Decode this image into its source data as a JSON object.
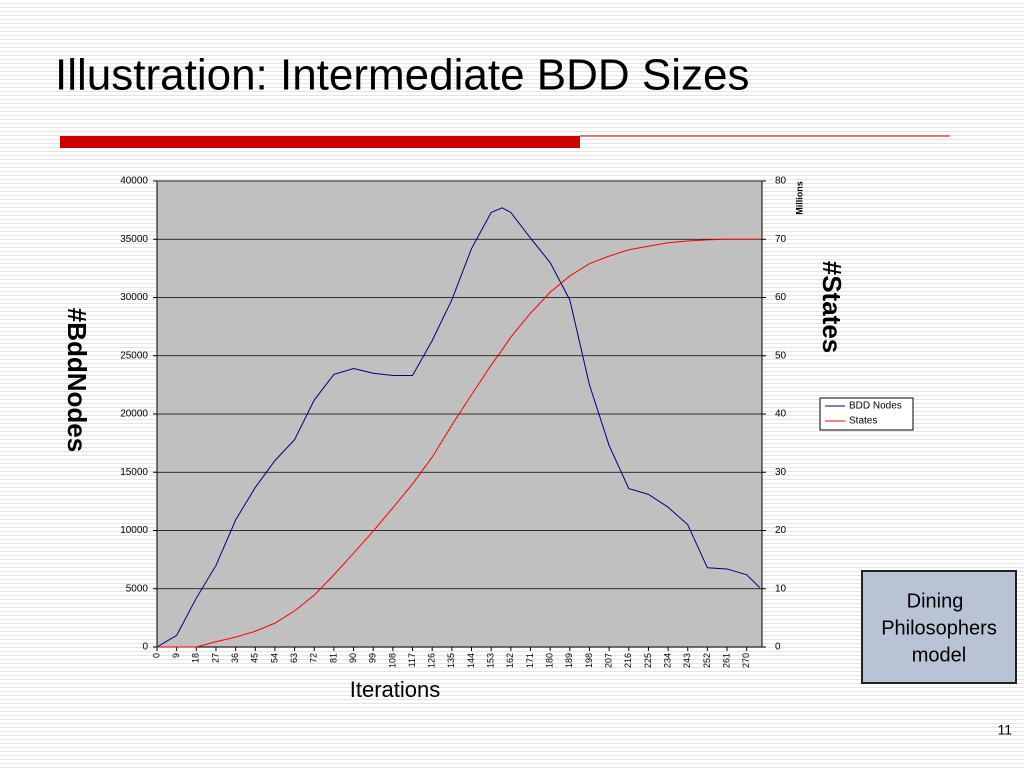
{
  "slide": {
    "title": "Illustration: Intermediate BDD Sizes",
    "note_lines": [
      "Dining",
      "Philosophers",
      "model"
    ],
    "page_number": "11"
  },
  "chart_data": {
    "type": "line",
    "x_label": "Iterations",
    "y_label": "#BddNodes",
    "y2_label": "#States",
    "y2_unit": "Millions",
    "x": [
      0,
      9,
      18,
      27,
      36,
      45,
      54,
      63,
      72,
      81,
      90,
      99,
      108,
      117,
      126,
      135,
      144,
      153,
      158,
      162,
      171,
      180,
      189,
      198,
      207,
      216,
      225,
      234,
      243,
      252,
      261,
      270,
      276
    ],
    "xlim": [
      0,
      277
    ],
    "xticks": [
      0,
      9,
      18,
      27,
      36,
      45,
      54,
      63,
      72,
      81,
      90,
      99,
      108,
      117,
      126,
      135,
      144,
      153,
      162,
      171,
      180,
      189,
      198,
      207,
      216,
      225,
      234,
      243,
      252,
      261,
      270
    ],
    "ylim": [
      0,
      40000
    ],
    "yticks": [
      0,
      5000,
      10000,
      15000,
      20000,
      25000,
      30000,
      35000,
      40000
    ],
    "y2lim": [
      0,
      80
    ],
    "y2ticks": [
      0,
      10,
      20,
      30,
      40,
      50,
      60,
      70,
      80
    ],
    "grid": true,
    "legend": "right",
    "series": [
      {
        "name": "BDD Nodes",
        "color": "#000080",
        "values": [
          0,
          1000,
          4200,
          7000,
          10900,
          13700,
          16000,
          17800,
          21200,
          23400,
          23900,
          23500,
          23300,
          23300,
          26300,
          29800,
          34200,
          37300,
          37700,
          37300,
          35100,
          33000,
          29800,
          22500,
          17300,
          13600,
          13100,
          12000,
          10500,
          6800,
          6700,
          6200,
          5100
        ]
      },
      {
        "name": "States",
        "color": "#ff0000",
        "axis": "y2",
        "values": [
          0,
          0,
          0,
          0.9,
          1.7,
          2.7,
          4.1,
          6.2,
          8.9,
          12.4,
          16.1,
          19.9,
          23.9,
          28.0,
          32.6,
          38.1,
          43.3,
          48.4,
          51,
          53.2,
          57.3,
          60.9,
          63.7,
          65.8,
          67.1,
          68.2,
          68.8,
          69.4,
          69.7,
          69.9,
          70,
          70,
          70
        ]
      }
    ]
  }
}
